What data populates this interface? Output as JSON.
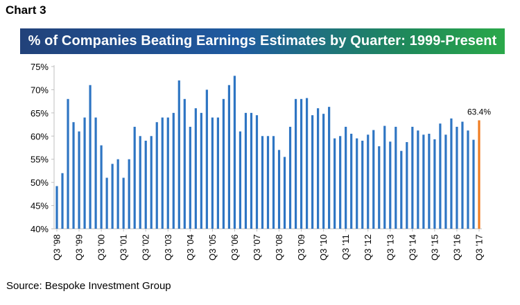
{
  "header": {
    "chart_label": "Chart 3"
  },
  "footer": {
    "source": "Source: Bespoke Investment Group"
  },
  "colors": {
    "bar": "#2e75c3",
    "highlight": "#ef7c22",
    "axis": "#bfbfbf",
    "text": "#000000"
  },
  "chart_data": {
    "type": "bar",
    "title": "% of Companies Beating Earnings Estimates by Quarter: 1999-Present",
    "xlabel": "",
    "ylabel": "",
    "ylim": [
      40,
      75
    ],
    "yticks": [
      "40%",
      "45%",
      "50%",
      "55%",
      "60%",
      "65%",
      "70%",
      "75%"
    ],
    "ytick_values": [
      40,
      45,
      50,
      55,
      60,
      65,
      70,
      75
    ],
    "xtick_labels": [
      "Q3 '98",
      "Q3 '99",
      "Q3 '00",
      "Q3 '01",
      "Q3 '02",
      "Q3 '03",
      "Q3 '04",
      "Q3 '05",
      "Q3 '06",
      "Q3 '07",
      "Q3 '08",
      "Q3 '09",
      "Q3 '10",
      "Q3 '11",
      "Q3 '12",
      "Q3 '13",
      "Q3 '14",
      "Q3 '15",
      "Q3 '16",
      "Q3 '17"
    ],
    "xtick_every": 4,
    "values": [
      49.2,
      52.0,
      68.0,
      63.0,
      61.0,
      64.0,
      71.0,
      64.0,
      58.0,
      51.0,
      54.0,
      55.0,
      51.0,
      55.0,
      62.0,
      60.0,
      59.0,
      60.0,
      63.0,
      64.0,
      64.0,
      65.0,
      72.0,
      68.0,
      62.0,
      66.0,
      65.0,
      70.0,
      64.0,
      64.0,
      68.0,
      71.0,
      73.0,
      61.0,
      65.0,
      65.0,
      64.5,
      60.0,
      60.0,
      60.0,
      57.0,
      55.5,
      62.0,
      68.0,
      68.0,
      68.2,
      64.5,
      66.0,
      64.8,
      66.3,
      59.5,
      60.0,
      62.0,
      60.5,
      59.5,
      59.0,
      60.3,
      61.3,
      57.8,
      62.2,
      58.8,
      62.0,
      56.8,
      58.7,
      62.0,
      61.2,
      60.3,
      60.5,
      59.3,
      62.7,
      60.3,
      63.8,
      62.0,
      63.1,
      61.2,
      59.2,
      63.4
    ],
    "highlight_label": "63.4%"
  }
}
